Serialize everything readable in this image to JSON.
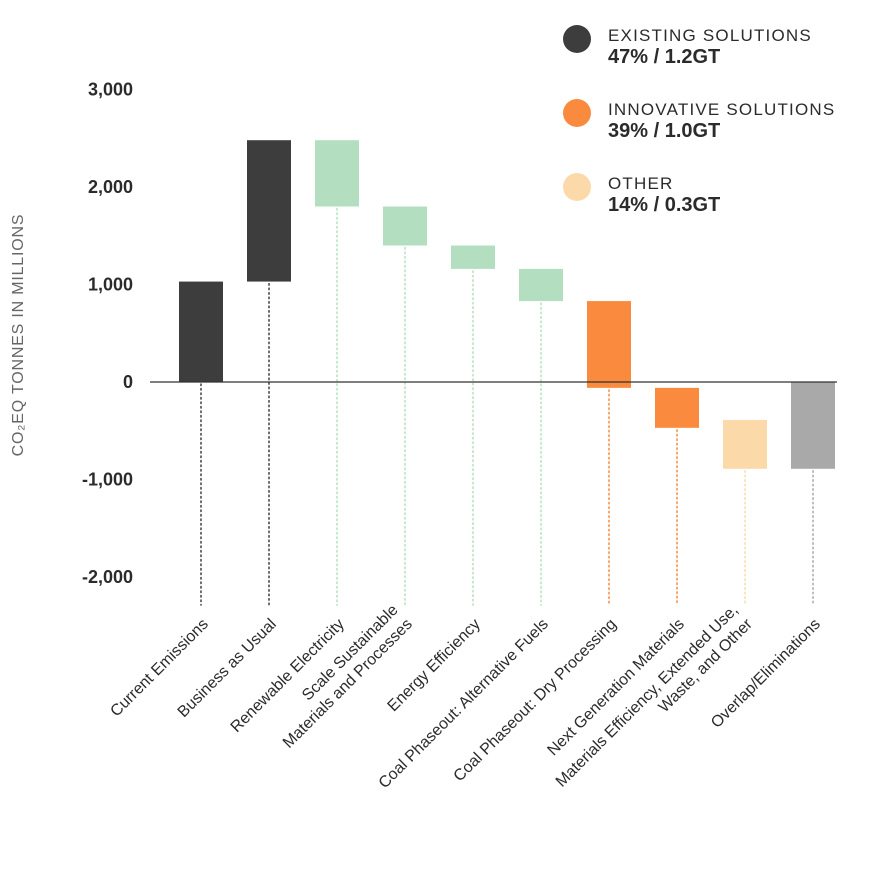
{
  "chart_data": {
    "type": "bar",
    "subtype": "waterfall",
    "title": "",
    "xlabel": "",
    "ylabel": "CO₂EQ TONNES IN MILLIONS",
    "ylim": [
      -2300,
      3100
    ],
    "yticks": [
      3000,
      2000,
      1000,
      0,
      -1000,
      -2000
    ],
    "ytick_labels": [
      "3,000",
      "2,000",
      "1,000",
      "0",
      "-1,000",
      "-2,000"
    ],
    "grid": false,
    "legend_position": "top-right",
    "categories": [
      [
        "Current Emissions"
      ],
      [
        "Business as Usual"
      ],
      [
        "Renewable Electricity"
      ],
      [
        "Scale Sustainable",
        "Materials and Processes"
      ],
      [
        "Energy Efficiency"
      ],
      [
        "Coal Phaseout: Alternative Fuels"
      ],
      [
        "Coal Phaseout: Dry Processing"
      ],
      [
        "Next Generation Materials"
      ],
      [
        "Materials Efficiency, Extended Use,",
        "Waste, and Other"
      ],
      [
        "Overlap/Eliminations"
      ]
    ],
    "bars": [
      {
        "start": 0,
        "end": 1030,
        "color": "#3d3d3d"
      },
      {
        "start": 1030,
        "end": 2480,
        "color": "#3d3d3d"
      },
      {
        "start": 2480,
        "end": 1800,
        "color": "#b3dfc0"
      },
      {
        "start": 1800,
        "end": 1400,
        "color": "#b3dfc0"
      },
      {
        "start": 1400,
        "end": 1160,
        "color": "#b3dfc0"
      },
      {
        "start": 1160,
        "end": 830,
        "color": "#b3dfc0"
      },
      {
        "start": 830,
        "end": -60,
        "color": "#f98a3e"
      },
      {
        "start": -60,
        "end": -470,
        "color": "#f98a3e"
      },
      {
        "start": -390,
        "end": -890,
        "color": "#fcd9a9"
      },
      {
        "start": 0,
        "end": -890,
        "color": "#a9a9a9"
      }
    ],
    "legend": [
      {
        "name": "EXISTING SOLUTIONS",
        "value": "47%  / 1.2GT",
        "color": "#3d3d3d"
      },
      {
        "name": "INNOVATIVE SOLUTIONS",
        "value": "39%  / 1.0GT",
        "color": "#f98a3e"
      },
      {
        "name": "OTHER",
        "value": "14%  / 0.3GT",
        "color": "#fcd9a9"
      }
    ]
  }
}
